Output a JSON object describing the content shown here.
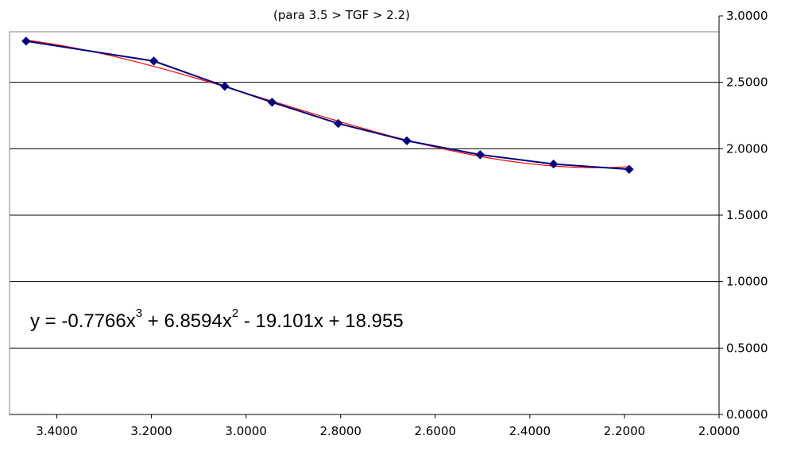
{
  "chart_data": {
    "type": "line",
    "title": "(para 3.5 > TGF > 2.2)",
    "xlabel": "",
    "ylabel": "",
    "xlim": [
      2.0,
      3.5
    ],
    "x_reversed": true,
    "ylim": [
      0.0,
      3.0
    ],
    "y_axis_side": "right",
    "x_ticks": [
      "3.4000",
      "3.2000",
      "3.0000",
      "2.8000",
      "2.6000",
      "2.4000",
      "2.2000",
      "2.0000"
    ],
    "x_tick_values": [
      3.4,
      3.2,
      3.0,
      2.8,
      2.6,
      2.4,
      2.2,
      2.0
    ],
    "y_ticks": [
      "0.0000",
      "0.5000",
      "1.0000",
      "1.5000",
      "2.0000",
      "2.5000",
      "3.0000"
    ],
    "y_tick_values": [
      0.0,
      0.5,
      1.0,
      1.5,
      2.0,
      2.5,
      3.0
    ],
    "grid": "horizontal",
    "series": [
      {
        "color": "#000080",
        "marker": "diamond",
        "x": [
          3.465,
          3.195,
          3.045,
          2.945,
          2.805,
          2.66,
          2.505,
          2.35,
          2.19
        ],
        "y": [
          2.81,
          2.66,
          2.47,
          2.35,
          2.19,
          2.06,
          1.955,
          1.885,
          1.845
        ]
      }
    ],
    "trendline": {
      "color": "#ff0000",
      "equation": "y = -0.7766x",
      "eq_sup1": "3",
      "eq_part2": " + 6.8594x",
      "eq_sup2": "2",
      "eq_part3": " - 19.101x + 18.955",
      "coefficients": [
        -0.7766,
        6.8594,
        -19.101,
        18.955
      ],
      "x_range": [
        2.19,
        3.465
      ]
    }
  }
}
